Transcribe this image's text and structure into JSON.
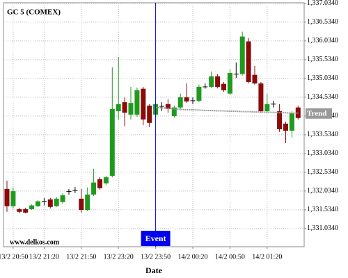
{
  "chart_data": {
    "type": "candlestick",
    "title": "GC 5 (COMEX)",
    "x_label": "Date",
    "watermark": "www.delkos.com",
    "categories": [
      null,
      "13/2 20:50",
      null,
      null,
      null,
      null,
      "13/2 21:20",
      null,
      null,
      null,
      null,
      null,
      "13/2 21:50",
      null,
      null,
      null,
      null,
      null,
      "13/2 23:20",
      null,
      null,
      null,
      null,
      null,
      "13/2 23:50",
      null,
      null,
      null,
      null,
      null,
      "14/2 00:20",
      null,
      null,
      null,
      null,
      null,
      "14/2 00:50",
      null,
      null,
      null,
      null,
      null,
      "14/2 01:20",
      null,
      null,
      null,
      null,
      null
    ],
    "open": [
      1332.09,
      1331.63,
      1331.55,
      1331.55,
      1331.55,
      1331.63,
      1331.76,
      1331.81,
      1331.63,
      1331.74,
      1332.02,
      1332.05,
      1331.83,
      1331.53,
      1331.94,
      1332.35,
      1332.24,
      1332.44,
      1334.16,
      1334.4,
      1334.07,
      1334.07,
      1334.76,
      1334.31,
      1334.07,
      1334.29,
      1334.35,
      1334.03,
      1334.26,
      1334.53,
      1334.44,
      1334.44,
      1334.81,
      1334.81,
      1335.09,
      1334.89,
      1334.63,
      1335.15,
      1335.15,
      1336.02,
      1335.13,
      1334.9,
      1334.16,
      1334.35,
      1334.16,
      1333.83,
      1333.64,
      1334.26
    ],
    "high": [
      1332.31,
      1332.13,
      1331.59,
      1331.59,
      1331.68,
      1331.79,
      1331.85,
      1331.85,
      1331.87,
      1331.98,
      1332.09,
      1332.14,
      1332.09,
      1332.13,
      1332.63,
      1332.4,
      1332.44,
      1335.33,
      1335.61,
      1334.53,
      1334.81,
      1334.79,
      1334.81,
      1334.35,
      1334.4,
      1334.4,
      1334.48,
      1334.31,
      1334.63,
      1334.9,
      1334.53,
      1334.87,
      1334.9,
      1335.22,
      1335.15,
      1334.94,
      1335.28,
      1335.46,
      1336.28,
      1336.11,
      1335.37,
      1334.94,
      1334.63,
      1334.44,
      1334.35,
      1333.88,
      1334.16,
      1334.31
    ],
    "low": [
      1331.48,
      1331.57,
      1331.44,
      1331.44,
      1331.53,
      1331.61,
      1331.65,
      1331.57,
      1331.61,
      1331.7,
      1331.94,
      1331.98,
      1331.46,
      1331.5,
      1331.9,
      1332.07,
      1332.2,
      1332.4,
      1333.94,
      1333.76,
      1333.94,
      1334.01,
      1333.79,
      1333.74,
      1333.98,
      1334.16,
      1334.12,
      1333.99,
      1334.22,
      1334.38,
      1334.35,
      1334.4,
      1334.76,
      1334.77,
      1334.77,
      1334.68,
      1334.59,
      1335.05,
      1335.11,
      1334.9,
      1334.87,
      1334.11,
      1334.12,
      1334.26,
      1333.61,
      1333.31,
      1333.46,
      1333.94
    ],
    "close": [
      1331.63,
      1332.03,
      1331.48,
      1331.46,
      1331.65,
      1331.76,
      1331.76,
      1331.61,
      1331.83,
      1331.92,
      1332.02,
      1332.05,
      1331.53,
      1331.94,
      1332.26,
      1332.11,
      1332.4,
      1334.22,
      1334.35,
      1334.12,
      1334.38,
      1334.72,
      1333.94,
      1333.85,
      1334.35,
      1334.29,
      1334.22,
      1334.26,
      1334.53,
      1334.42,
      1334.44,
      1334.81,
      1334.81,
      1335.09,
      1334.81,
      1334.72,
      1335.18,
      1335.15,
      1336.15,
      1334.94,
      1334.9,
      1334.16,
      1334.35,
      1334.35,
      1333.68,
      1333.64,
      1334.11,
      1333.98
    ],
    "up_color": "#1f9a1f",
    "down_color": "#8b0a0a",
    "trend": {
      "name": "Trend",
      "color": "#999999",
      "values": [
        null,
        null,
        null,
        null,
        null,
        null,
        null,
        null,
        null,
        null,
        null,
        null,
        null,
        null,
        null,
        null,
        null,
        null,
        null,
        null,
        null,
        null,
        null,
        null,
        1334.26,
        1334.25,
        1334.24,
        1334.22,
        1334.21,
        1334.2,
        1334.2,
        1334.19,
        1334.18,
        1334.18,
        1334.17,
        1334.17,
        1334.16,
        1334.16,
        1334.15,
        1334.15,
        1334.14,
        1334.14,
        1334.13,
        1334.13,
        1334.12,
        1334.12,
        1334.11,
        1334.11
      ]
    },
    "event": {
      "label": "Event",
      "x": "13/2 23:50",
      "color": "#0000ee"
    },
    "ylim": [
      1330.55,
      1337.05
    ],
    "yticks": [
      {
        "value": 1331.034,
        "label": "1,331.0340"
      },
      {
        "value": 1331.534,
        "label": "1,331.5340"
      },
      {
        "value": 1332.034,
        "label": "1,332.0340"
      },
      {
        "value": 1332.534,
        "label": "1,332.5340"
      },
      {
        "value": 1333.034,
        "label": "1,333.0340"
      },
      {
        "value": 1333.534,
        "label": "1,333.5340"
      },
      {
        "value": 1334.034,
        "label": "1,334.0340"
      },
      {
        "value": 1334.534,
        "label": "1,334.5340"
      },
      {
        "value": 1335.034,
        "label": "1,335.0340"
      },
      {
        "value": 1335.534,
        "label": "1,335.5340"
      },
      {
        "value": 1336.034,
        "label": "1,336.0340"
      },
      {
        "value": 1336.534,
        "label": "1,336.5340"
      },
      {
        "value": 1337.034,
        "label": "1,337.0340"
      }
    ],
    "grid": true
  }
}
